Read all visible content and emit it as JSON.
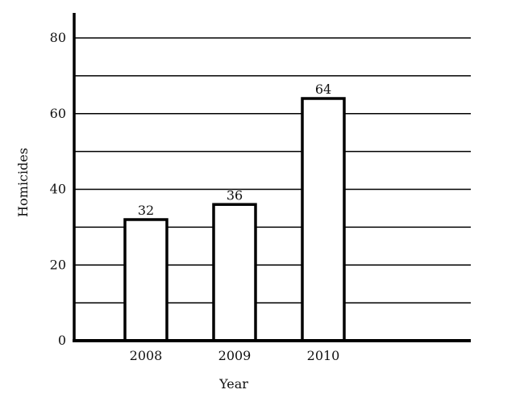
{
  "chart_data": {
    "type": "bar",
    "title": "",
    "xlabel": "Year",
    "ylabel": "Homicides",
    "categories": [
      "2008",
      "2009",
      "2010"
    ],
    "values": [
      32,
      36,
      64
    ],
    "data_labels": [
      "32",
      "36",
      "64"
    ],
    "ylim": [
      0,
      80
    ],
    "yticks": [
      "0",
      "20",
      "40",
      "60",
      "80"
    ],
    "grid": true,
    "bar_fill": "#ffffff",
    "bar_stroke": "#000000"
  }
}
